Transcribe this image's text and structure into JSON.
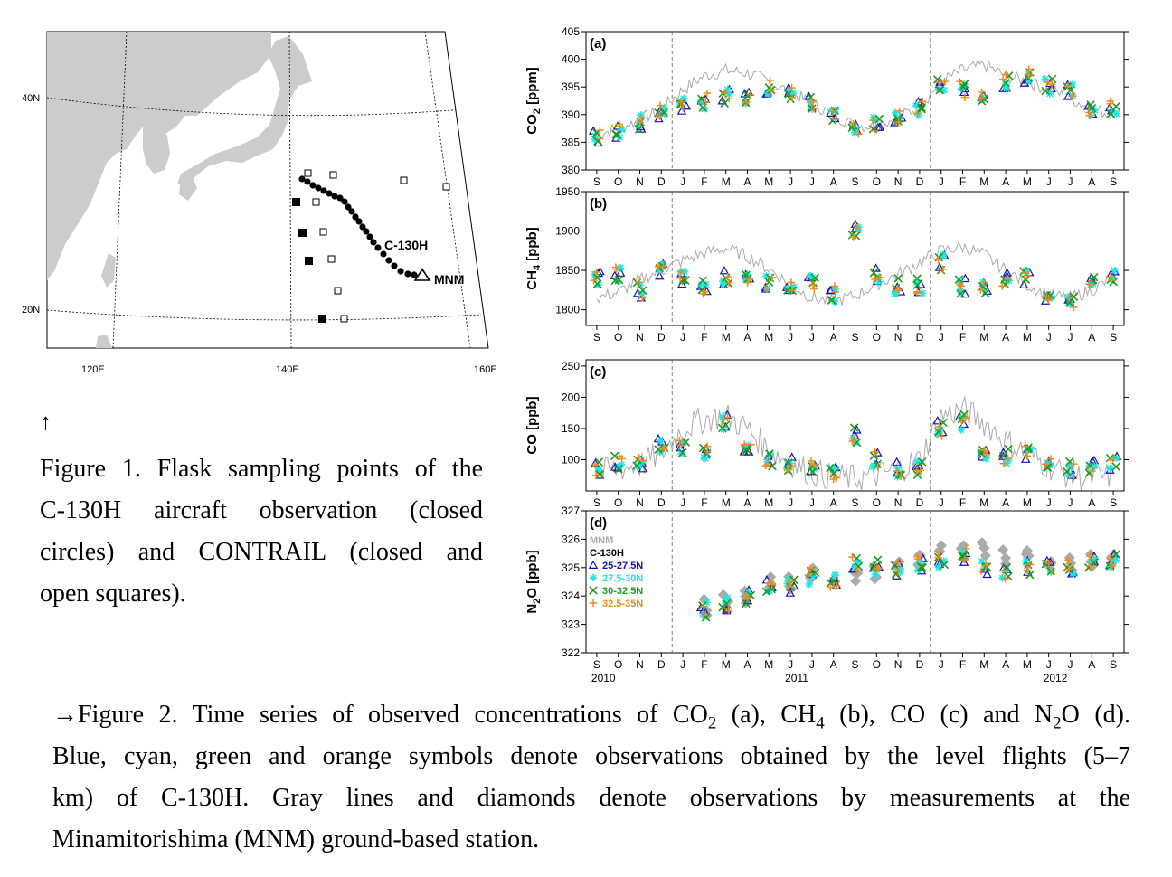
{
  "map": {
    "lat_labels": [
      "40N",
      "20N"
    ],
    "lon_labels": [
      "120E",
      "140E",
      "160E"
    ],
    "aircraft_label": "C-130H",
    "station_label": "MNM"
  },
  "figure1": {
    "arrow": "↑",
    "lines": [
      "Figure 1. Flask sampling points of the",
      "C-130H aircraft observation (closed",
      "circles) and CONTRAIL (closed and",
      "open squares)."
    ]
  },
  "figure2": {
    "line1_parts": [
      "→Figure 2. Time series of observed concentrations of CO",
      "2",
      " (a), CH",
      "4",
      " (b), CO (c) and N",
      "2",
      "O (d)."
    ],
    "lines": [
      "Blue, cyan, green and orange symbols denote observations obtained by the level flights (5–7",
      "km) of C-130H. Gray lines and diamonds denote observations by measurements at the",
      "Minamitorishima (MNM) ground-based station."
    ]
  },
  "colors": {
    "band1": "#1414b4",
    "band2": "#1ee6e6",
    "band3": "#1e9a1e",
    "band4": "#f08a1e",
    "mnm": "#aaaaaa",
    "land": "#cccccc"
  },
  "chart_data": [
    {
      "type": "scatter",
      "panel": "(a)",
      "ylabel": "CO2 [ppm]",
      "ylim": [
        380,
        405
      ],
      "yticks": [
        380,
        385,
        390,
        395,
        400,
        405
      ],
      "months": [
        "S",
        "O",
        "N",
        "D",
        "J",
        "F",
        "M",
        "A",
        "M",
        "J",
        "J",
        "A",
        "S",
        "O",
        "N",
        "D",
        "J",
        "F",
        "M",
        "A",
        "M",
        "J",
        "J",
        "A",
        "S"
      ],
      "mnm_line": [
        386.5,
        387.5,
        389,
        391,
        394.5,
        397,
        398,
        397.5,
        396,
        394,
        392,
        390,
        388,
        388,
        389.5,
        391.5,
        396,
        398,
        399,
        397,
        396,
        394.5,
        393,
        391,
        390
      ],
      "c130h_monthly": [
        386,
        387,
        388.5,
        390.5,
        392,
        392.5,
        393.5,
        393.5,
        395,
        394,
        392.5,
        389.5,
        388,
        388.5,
        390,
        391,
        395,
        394.5,
        393.5,
        396,
        397,
        395,
        394.5,
        391,
        391
      ]
    },
    {
      "type": "scatter",
      "panel": "(b)",
      "ylabel": "CH4 [ppb]",
      "ylim": [
        1780,
        1950
      ],
      "yticks": [
        1800,
        1850,
        1900,
        1950
      ],
      "months": [
        "S",
        "O",
        "N",
        "D",
        "J",
        "F",
        "M",
        "A",
        "M",
        "J",
        "J",
        "A",
        "S",
        "O",
        "N",
        "D",
        "J",
        "F",
        "M",
        "A",
        "M",
        "J",
        "J",
        "A",
        "S"
      ],
      "mnm_line": [
        1815,
        1822,
        1838,
        1850,
        1862,
        1872,
        1878,
        1868,
        1852,
        1832,
        1815,
        1810,
        1818,
        1832,
        1845,
        1860,
        1875,
        1880,
        1870,
        1850,
        1832,
        1818,
        1815,
        1825,
        1840
      ],
      "c130h_monthly": [
        1840,
        1845,
        1825,
        1850,
        1840,
        1830,
        1840,
        1835,
        1835,
        1825,
        1835,
        1820,
        1900,
        1845,
        1830,
        1830,
        1860,
        1830,
        1830,
        1840,
        1840,
        1820,
        1810,
        1840,
        1840
      ]
    },
    {
      "type": "scatter",
      "panel": "(c)",
      "ylabel": "CO [ppb]",
      "ylim": [
        50,
        260
      ],
      "yticks": [
        100,
        150,
        200,
        250
      ],
      "months": [
        "S",
        "O",
        "N",
        "D",
        "J",
        "F",
        "M",
        "A",
        "M",
        "J",
        "J",
        "A",
        "S",
        "O",
        "N",
        "D",
        "J",
        "F",
        "M",
        "A",
        "M",
        "J",
        "J",
        "A",
        "S"
      ],
      "mnm_line": [
        80,
        85,
        92,
        110,
        150,
        165,
        170,
        150,
        115,
        95,
        80,
        72,
        70,
        75,
        85,
        100,
        170,
        180,
        160,
        130,
        110,
        90,
        75,
        70,
        75
      ],
      "c130h_monthly": [
        85,
        95,
        95,
        125,
        120,
        110,
        160,
        120,
        100,
        95,
        90,
        80,
        140,
        100,
        85,
        85,
        150,
        160,
        110,
        105,
        110,
        90,
        85,
        90,
        95
      ]
    },
    {
      "type": "scatter",
      "panel": "(d)",
      "ylabel": "N2O [ppb]",
      "ylim": [
        322,
        327
      ],
      "yticks": [
        322,
        323,
        324,
        325,
        326,
        327
      ],
      "months": [
        "S",
        "O",
        "N",
        "D",
        "J",
        "F",
        "M",
        "A",
        "M",
        "J",
        "J",
        "A",
        "S",
        "O",
        "N",
        "D",
        "J",
        "F",
        "M",
        "A",
        "M",
        "J",
        "J",
        "A",
        "S"
      ],
      "years": [
        {
          "label": "2010",
          "month_index": 0
        },
        {
          "label": "2011",
          "month_index": 9
        },
        {
          "label": "2012",
          "month_index": 21
        }
      ],
      "legend": [
        "MNM",
        "C-130H",
        "25-27.5N",
        "27.5-30N",
        "30-32.5N",
        "32.5-35N"
      ],
      "mnm_diamonds": [
        null,
        null,
        null,
        null,
        null,
        323.6,
        323.8,
        324,
        324.4,
        324.5,
        324.7,
        324.4,
        324.8,
        324.9,
        325,
        325.2,
        325.6,
        325.5,
        325.6,
        325.4,
        325.3,
        325.2,
        325.1,
        325.2,
        325.1
      ],
      "c130h_monthly": [
        null,
        null,
        null,
        null,
        null,
        323.5,
        323.7,
        324,
        324.4,
        324.3,
        324.7,
        324.6,
        325.1,
        325,
        324.9,
        325.1,
        325.3,
        325.4,
        325,
        324.9,
        325,
        325.1,
        325,
        325.2,
        325.3
      ]
    }
  ]
}
